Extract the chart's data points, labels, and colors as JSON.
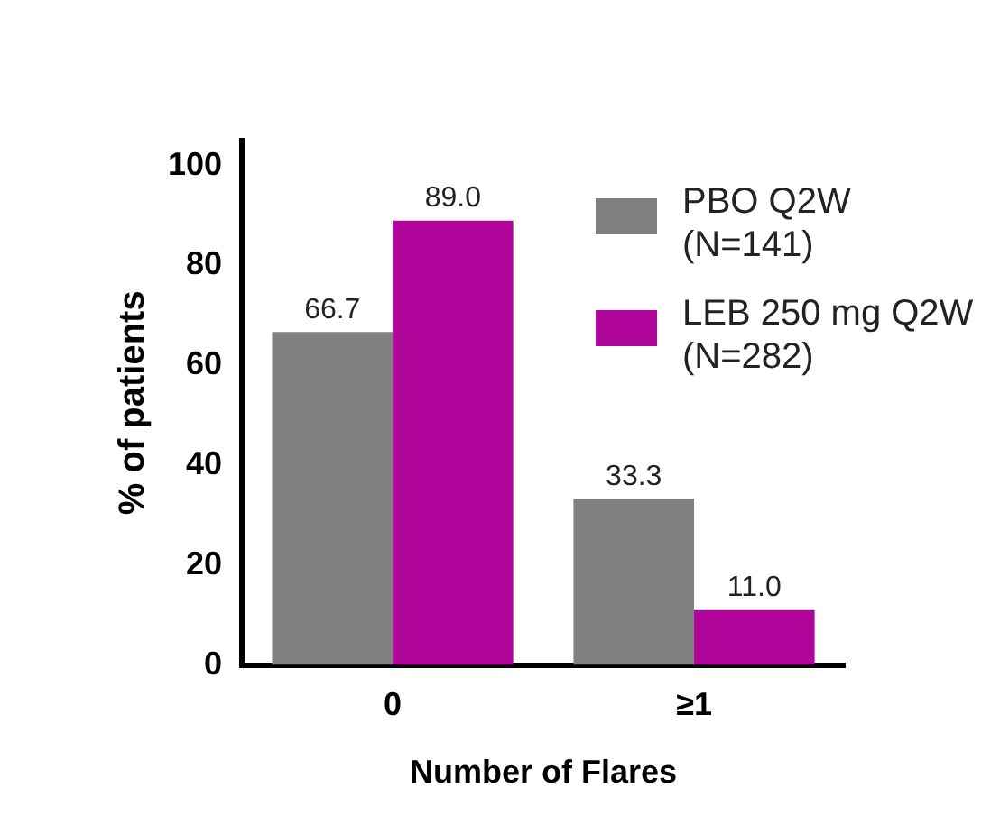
{
  "chart_data": {
    "type": "bar",
    "xlabel": "Number of Flares",
    "ylabel": "% of patients",
    "categories": [
      "0",
      "≥1"
    ],
    "series": [
      {
        "name": "PBO Q2W (N=141)",
        "color": "#808080",
        "values": [
          66.7,
          33.3
        ]
      },
      {
        "name": "LEB 250 mg Q2W (N=282)",
        "color": "#b0059b",
        "values": [
          89.0,
          11.0
        ]
      }
    ],
    "value_labels": [
      [
        "66.7",
        "33.3"
      ],
      [
        "89.0",
        "11.0"
      ]
    ],
    "ylim": [
      0,
      105
    ],
    "yticks": [
      0,
      20,
      40,
      60,
      80,
      100
    ],
    "grid": false,
    "legend": "top right"
  }
}
